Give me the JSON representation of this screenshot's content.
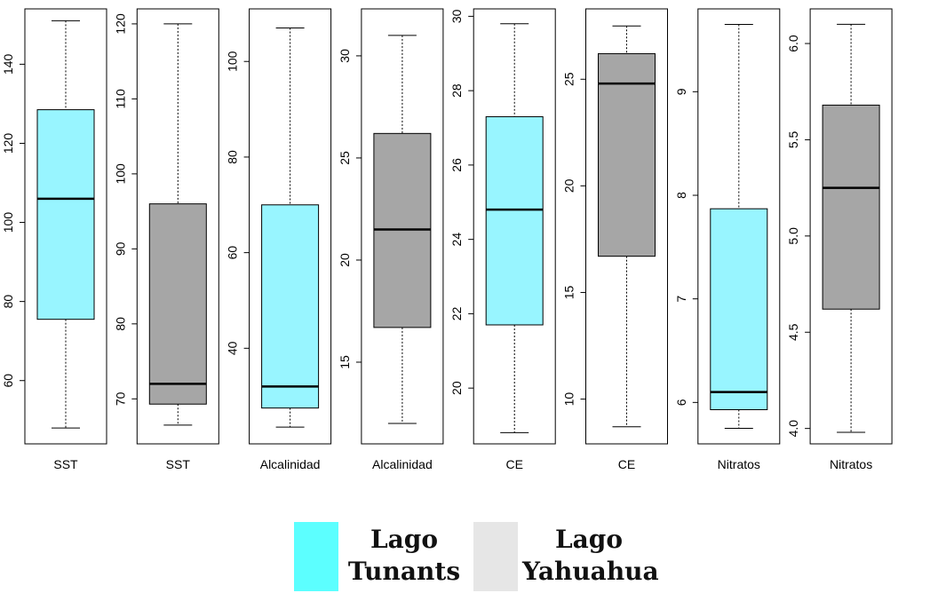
{
  "chart_data": [
    {
      "type": "box",
      "category": "SST",
      "group": "Lago Tunants",
      "color": "#98F5FF",
      "ylim": [
        44,
        154
      ],
      "yticks": [
        60,
        80,
        100,
        120,
        140
      ],
      "stats": {
        "min": 48,
        "q1": 75.5,
        "median": 106,
        "q3": 128.5,
        "max": 151
      }
    },
    {
      "type": "box",
      "category": "SST",
      "group": "Lago Yahuahua",
      "color": "#A6A6A6",
      "ylim": [
        64,
        122
      ],
      "yticks": [
        70,
        80,
        90,
        100,
        110,
        120
      ],
      "stats": {
        "min": 66.5,
        "q1": 69.3,
        "median": 72,
        "q3": 96,
        "max": 120
      }
    },
    {
      "type": "box",
      "category": "Alcalinidad",
      "group": "Lago Tunants",
      "color": "#98F5FF",
      "ylim": [
        20,
        111
      ],
      "yticks": [
        40,
        60,
        80,
        100
      ],
      "stats": {
        "min": 23.5,
        "q1": 27.5,
        "median": 32,
        "q3": 70,
        "max": 107
      }
    },
    {
      "type": "box",
      "category": "Alcalinidad",
      "group": "Lago Yahuahua",
      "color": "#A6A6A6",
      "ylim": [
        11,
        32.3
      ],
      "yticks": [
        15,
        20,
        25,
        30
      ],
      "stats": {
        "min": 12,
        "q1": 16.7,
        "median": 21.5,
        "q3": 26.2,
        "max": 31
      }
    },
    {
      "type": "box",
      "category": "CE",
      "group": "Lago Tunants",
      "color": "#98F5FF",
      "ylim": [
        18.5,
        30.2
      ],
      "yticks": [
        20,
        22,
        24,
        26,
        28,
        30
      ],
      "stats": {
        "min": 18.8,
        "q1": 21.7,
        "median": 24.8,
        "q3": 27.3,
        "max": 29.8
      }
    },
    {
      "type": "box",
      "category": "CE",
      "group": "Lago Yahuahua",
      "color": "#A6A6A6",
      "ylim": [
        7.9,
        28.3
      ],
      "yticks": [
        10,
        15,
        20,
        25
      ],
      "stats": {
        "min": 8.7,
        "q1": 16.7,
        "median": 24.8,
        "q3": 26.2,
        "max": 27.5
      }
    },
    {
      "type": "box",
      "category": "Nitratos",
      "group": "Lago Tunants",
      "color": "#98F5FF",
      "ylim": [
        5.6,
        9.8
      ],
      "yticks": [
        6,
        7,
        8,
        9
      ],
      "stats": {
        "min": 5.75,
        "q1": 5.93,
        "median": 6.1,
        "q3": 7.87,
        "max": 9.65
      }
    },
    {
      "type": "box",
      "category": "Nitratos",
      "group": "Lago Yahuahua",
      "color": "#A6A6A6",
      "ylim": [
        3.92,
        6.18
      ],
      "yticks": [
        4.0,
        4.5,
        5.0,
        5.5,
        6.0
      ],
      "stats": {
        "min": 3.98,
        "q1": 4.62,
        "median": 5.25,
        "q3": 5.68,
        "max": 6.1
      }
    }
  ],
  "legend": {
    "items": [
      {
        "line1": "Lago",
        "line2": "Tunants",
        "color": "#5CFFFF"
      },
      {
        "line1": "Lago",
        "line2": "Yahuahua",
        "color": "#E6E6E6"
      }
    ]
  }
}
